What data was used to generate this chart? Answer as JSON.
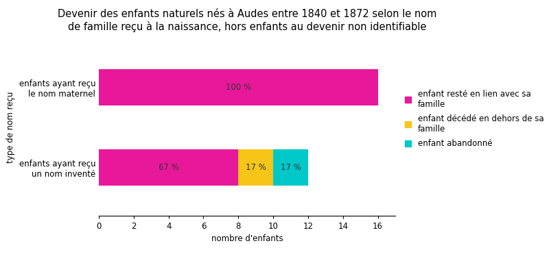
{
  "title": "Devenir des enfants naturels nés à Audes entre 1840 et 1872 selon le nom\nde famille reçu à la naissance, hors enfants au devenir non identifiable",
  "categories": [
    "enfants ayant reçu\nun nom inventé",
    "enfants ayant reçu\nle nom maternel"
  ],
  "series": [
    {
      "label": "enfant resté en lien avec sa\nfamille",
      "color": "#E8189A",
      "values": [
        8,
        16
      ]
    },
    {
      "label": "enfant décédé en dehors de sa\nfamille",
      "color": "#F5C518",
      "values": [
        2,
        0
      ]
    },
    {
      "label": "enfant abandonné",
      "color": "#00C8C8",
      "values": [
        2,
        0
      ]
    }
  ],
  "percentages": [
    [
      "67 %",
      "17 %",
      "17 %"
    ],
    [
      "100 %",
      "",
      ""
    ]
  ],
  "xlabel": "nombre d'enfants",
  "ylabel": "type de nom reçu",
  "xlim": [
    0,
    17
  ],
  "xticks": [
    0,
    2,
    4,
    6,
    8,
    10,
    12,
    14,
    16
  ],
  "background_color": "#ffffff",
  "bar_height": 0.45,
  "title_fontsize": 10.5,
  "label_fontsize": 8.5,
  "tick_fontsize": 8.5,
  "pct_fontsize": 8.5
}
